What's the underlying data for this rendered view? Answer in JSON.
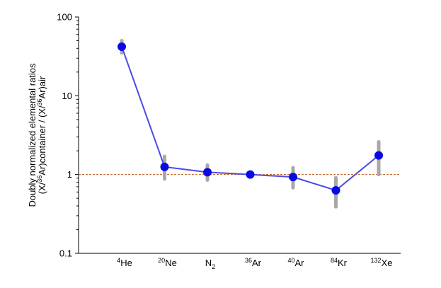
{
  "chart_data": {
    "type": "line",
    "y_scale": "log",
    "ylim": [
      0.1,
      100
    ],
    "y_ticks": [
      "0.1",
      "1",
      "10",
      "100"
    ],
    "ylabel_line1": "Doubly normalized elemental ratios",
    "ylabel_line2_parts": [
      "(X/",
      "36",
      "Ar)container / (X/",
      "36",
      "Ar)air"
    ],
    "categories": [
      {
        "sup": "4",
        "base": "He",
        "sub": ""
      },
      {
        "sup": "20",
        "base": "Ne",
        "sub": ""
      },
      {
        "sup": "",
        "base": "N",
        "sub": "2"
      },
      {
        "sup": "36",
        "base": "Ar",
        "sub": ""
      },
      {
        "sup": "40",
        "base": "Ar",
        "sub": ""
      },
      {
        "sup": "84",
        "base": "Kr",
        "sub": ""
      },
      {
        "sup": "132",
        "base": "Xe",
        "sub": ""
      }
    ],
    "values": [
      42,
      1.25,
      1.07,
      1.0,
      0.93,
      0.63,
      1.75
    ],
    "error_ranges": [
      [
        35,
        50
      ],
      [
        0.88,
        1.7
      ],
      [
        0.85,
        1.32
      ],
      [
        0.97,
        1.03
      ],
      [
        0.68,
        1.22
      ],
      [
        0.39,
        0.91
      ],
      [
        1.0,
        2.6
      ]
    ],
    "reference_line": {
      "y": 1,
      "color": "#c05a1a",
      "style": "dashed"
    },
    "colors": {
      "line": "#4a4ae8",
      "marker": "#0a0ae0",
      "error_bar": "#a8a8a8",
      "axis": "#000000"
    },
    "grid": false,
    "legend": "none"
  }
}
